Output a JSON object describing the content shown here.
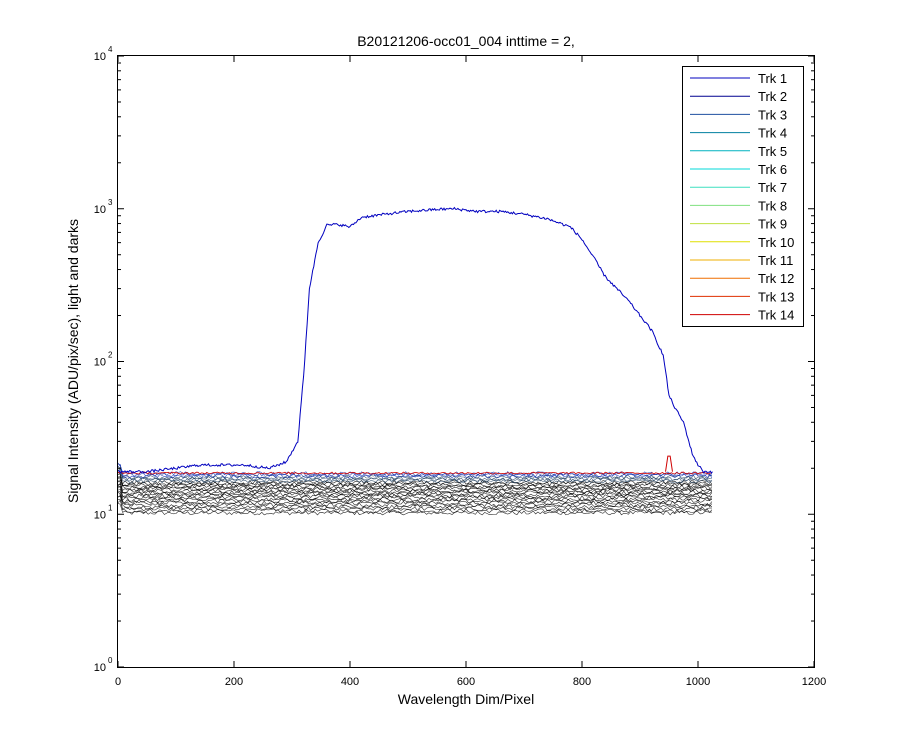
{
  "chart_data": {
    "type": "line",
    "title": "B20121206-occ01_004 inttime = 2,",
    "xlabel": "Wavelength Dim/Pixel",
    "ylabel": "Signal Intensity (ADU/pix/sec), light and darks",
    "xlim": [
      0,
      1200
    ],
    "ylim": [
      1,
      10000
    ],
    "yscale": "log",
    "x_ticks": [
      "0",
      "200",
      "400",
      "600",
      "800",
      "1000",
      "1200"
    ],
    "y_ticks": [
      {
        "base": "10",
        "exp": "0",
        "value": 1
      },
      {
        "base": "10",
        "exp": "1",
        "value": 10
      },
      {
        "base": "10",
        "exp": "2",
        "value": 100
      },
      {
        "base": "10",
        "exp": "3",
        "value": 1000
      },
      {
        "base": "10",
        "exp": "4",
        "value": 10000
      }
    ],
    "grid": false,
    "legend_position": "top-right",
    "series": [
      {
        "name": "Trk 1",
        "color": "#0000bf"
      },
      {
        "name": "Trk 2",
        "color": "#00008f"
      },
      {
        "name": "Trk 3",
        "color": "#1f4fa0"
      },
      {
        "name": "Trk 4",
        "color": "#007f9f"
      },
      {
        "name": "Trk 5",
        "color": "#00b2bf"
      },
      {
        "name": "Trk 6",
        "color": "#00d8d8"
      },
      {
        "name": "Trk 7",
        "color": "#3fdfbf"
      },
      {
        "name": "Trk 8",
        "color": "#7fe07f"
      },
      {
        "name": "Trk 9",
        "color": "#bfe03f"
      },
      {
        "name": "Trk 10",
        "color": "#dfdf00"
      },
      {
        "name": "Trk 11",
        "color": "#efaf00"
      },
      {
        "name": "Trk 12",
        "color": "#ef6f00"
      },
      {
        "name": "Trk 13",
        "color": "#df2f00"
      },
      {
        "name": "Trk 14",
        "color": "#cf0000"
      }
    ],
    "signal_trace": {
      "color": "#0000bf",
      "points": [
        [
          0,
          19
        ],
        [
          50,
          19
        ],
        [
          100,
          20
        ],
        [
          140,
          21
        ],
        [
          180,
          21
        ],
        [
          220,
          21
        ],
        [
          260,
          20
        ],
        [
          290,
          22
        ],
        [
          310,
          30
        ],
        [
          320,
          80
        ],
        [
          330,
          300
        ],
        [
          345,
          600
        ],
        [
          360,
          780
        ],
        [
          380,
          790
        ],
        [
          400,
          760
        ],
        [
          420,
          880
        ],
        [
          460,
          920
        ],
        [
          500,
          960
        ],
        [
          550,
          990
        ],
        [
          580,
          1000
        ],
        [
          620,
          960
        ],
        [
          660,
          960
        ],
        [
          700,
          920
        ],
        [
          740,
          860
        ],
        [
          780,
          760
        ],
        [
          800,
          630
        ],
        [
          820,
          480
        ],
        [
          840,
          360
        ],
        [
          860,
          300
        ],
        [
          880,
          250
        ],
        [
          900,
          200
        ],
        [
          920,
          160
        ],
        [
          940,
          110
        ],
        [
          950,
          60
        ],
        [
          960,
          50
        ],
        [
          975,
          40
        ],
        [
          990,
          25
        ],
        [
          1000,
          21
        ],
        [
          1010,
          19
        ],
        [
          1025,
          19
        ]
      ]
    },
    "spike_annotation": {
      "x": 950,
      "y": 24,
      "color": "#cf0000"
    },
    "dark_band": {
      "x_range": [
        0,
        1024
      ],
      "y_range": [
        10.2,
        18.5
      ],
      "color": "#000000"
    }
  }
}
